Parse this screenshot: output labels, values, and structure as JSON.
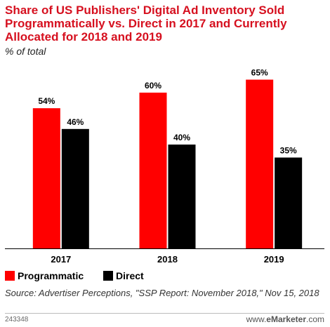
{
  "title": "Share of US Publishers' Digital Ad Inventory Sold Programmatically vs. Direct in 2017 and Currently Allocated for 2018 and 2019",
  "subtitle": "% of total",
  "source": "Source: Advertiser Perceptions, \"SSP Report: November 2018,\" Nov 15, 2018",
  "chart_id": "243348",
  "brand": {
    "prefix": "www.",
    "name": "eMarketer",
    "suffix": ".com"
  },
  "colors": {
    "programmatic": "#ff0000",
    "direct": "#000000",
    "title": "#d6101f"
  },
  "chart_data": {
    "type": "bar",
    "title": "Share of US Publishers' Digital Ad Inventory Sold Programmatically vs. Direct in 2017 and Currently Allocated for 2018 and 2019",
    "subtitle": "% of total",
    "categories": [
      "2017",
      "2018",
      "2019"
    ],
    "series": [
      {
        "name": "Programmatic",
        "values": [
          54,
          60,
          65
        ],
        "labels": [
          "54%",
          "60%",
          "65%"
        ]
      },
      {
        "name": "Direct",
        "values": [
          46,
          40,
          35
        ],
        "labels": [
          "46%",
          "40%",
          "35%"
        ]
      }
    ],
    "ylim": [
      0,
      70
    ],
    "grid": false,
    "legend": "bottom-left"
  }
}
